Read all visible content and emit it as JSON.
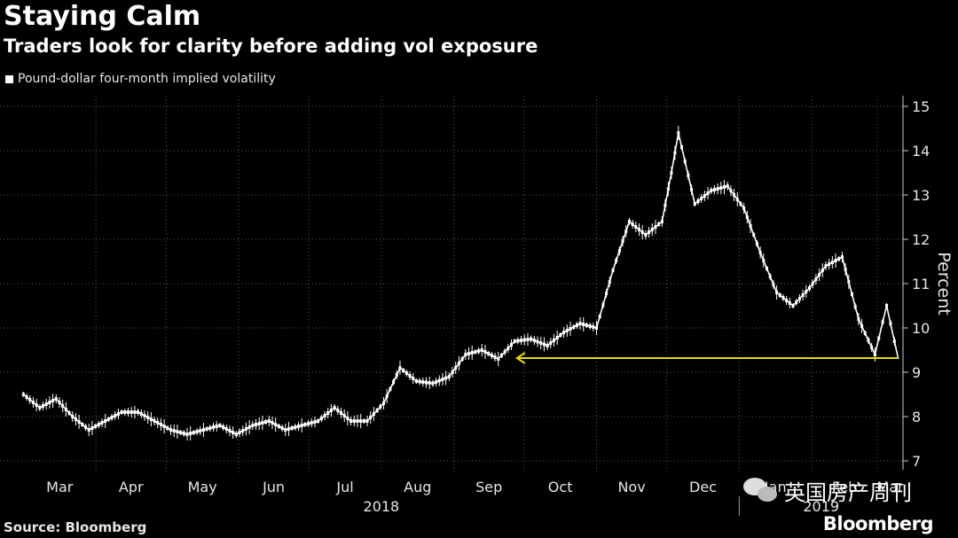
{
  "header": {
    "title": "Staying Calm",
    "subtitle": "Traders look for clarity before adding vol exposure"
  },
  "footer": {
    "source": "Source: Bloomberg",
    "brand": "Bloomberg"
  },
  "watermark": {
    "text": "英国房产周刊"
  },
  "colors": {
    "background": "#000000",
    "series": "#ffffff",
    "annotation_arrow": "#e8d800",
    "grid": "#5a5a5a"
  },
  "chart_data": {
    "type": "line",
    "style": "candlestick-like daily series",
    "title": "Staying Calm",
    "subtitle": "Traders look for clarity before adding vol exposure",
    "ylabel": "Percent",
    "ylim": [
      7,
      15
    ],
    "yticks": [
      7,
      8,
      9,
      10,
      11,
      12,
      13,
      14,
      15
    ],
    "grid": true,
    "legend": {
      "position": "top-left",
      "entries": [
        "Pound-dollar four-month implied volatility"
      ]
    },
    "x_month_labels": [
      "Mar",
      "Apr",
      "May",
      "Jun",
      "Jul",
      "Aug",
      "Sep",
      "Oct",
      "Nov",
      "Dec",
      "Jan",
      "Feb",
      "Mar"
    ],
    "x_year_labels": [
      "2018",
      "2019"
    ],
    "series": [
      {
        "name": "Pound-dollar four-month implied volatility",
        "x": [
          "2018-03-01",
          "2018-03-08",
          "2018-03-15",
          "2018-03-22",
          "2018-03-29",
          "2018-04-05",
          "2018-04-12",
          "2018-04-19",
          "2018-04-26",
          "2018-05-03",
          "2018-05-10",
          "2018-05-17",
          "2018-05-24",
          "2018-05-31",
          "2018-06-07",
          "2018-06-14",
          "2018-06-21",
          "2018-06-28",
          "2018-07-05",
          "2018-07-12",
          "2018-07-19",
          "2018-07-26",
          "2018-08-02",
          "2018-08-09",
          "2018-08-16",
          "2018-08-23",
          "2018-08-30",
          "2018-09-06",
          "2018-09-13",
          "2018-09-20",
          "2018-09-27",
          "2018-10-04",
          "2018-10-11",
          "2018-10-18",
          "2018-10-25",
          "2018-11-01",
          "2018-11-08",
          "2018-11-15",
          "2018-11-22",
          "2018-11-29",
          "2018-12-03",
          "2018-12-06",
          "2018-12-13",
          "2018-12-20",
          "2018-12-27",
          "2019-01-03",
          "2019-01-10",
          "2019-01-17",
          "2019-01-24",
          "2019-01-31",
          "2019-02-07",
          "2019-02-14",
          "2019-02-21",
          "2019-02-28",
          "2019-03-05",
          "2019-03-10"
        ],
        "values": [
          8.5,
          8.2,
          8.4,
          8.0,
          7.7,
          7.9,
          8.1,
          8.1,
          7.9,
          7.7,
          7.6,
          7.7,
          7.8,
          7.6,
          7.8,
          7.9,
          7.7,
          7.8,
          7.9,
          8.2,
          7.9,
          7.9,
          8.3,
          9.1,
          8.8,
          8.75,
          8.9,
          9.4,
          9.5,
          9.3,
          9.7,
          9.75,
          9.6,
          9.9,
          10.1,
          10.0,
          11.3,
          12.4,
          12.1,
          12.4,
          13.5,
          14.4,
          12.8,
          13.1,
          13.2,
          12.7,
          11.7,
          10.8,
          10.5,
          10.9,
          11.4,
          11.6,
          10.2,
          9.4,
          10.5,
          9.3
        ]
      }
    ],
    "annotations": [
      {
        "type": "arrow",
        "from_x": "2019-03-10",
        "to_x": "2018-09-28",
        "y": 9.3
      }
    ]
  }
}
